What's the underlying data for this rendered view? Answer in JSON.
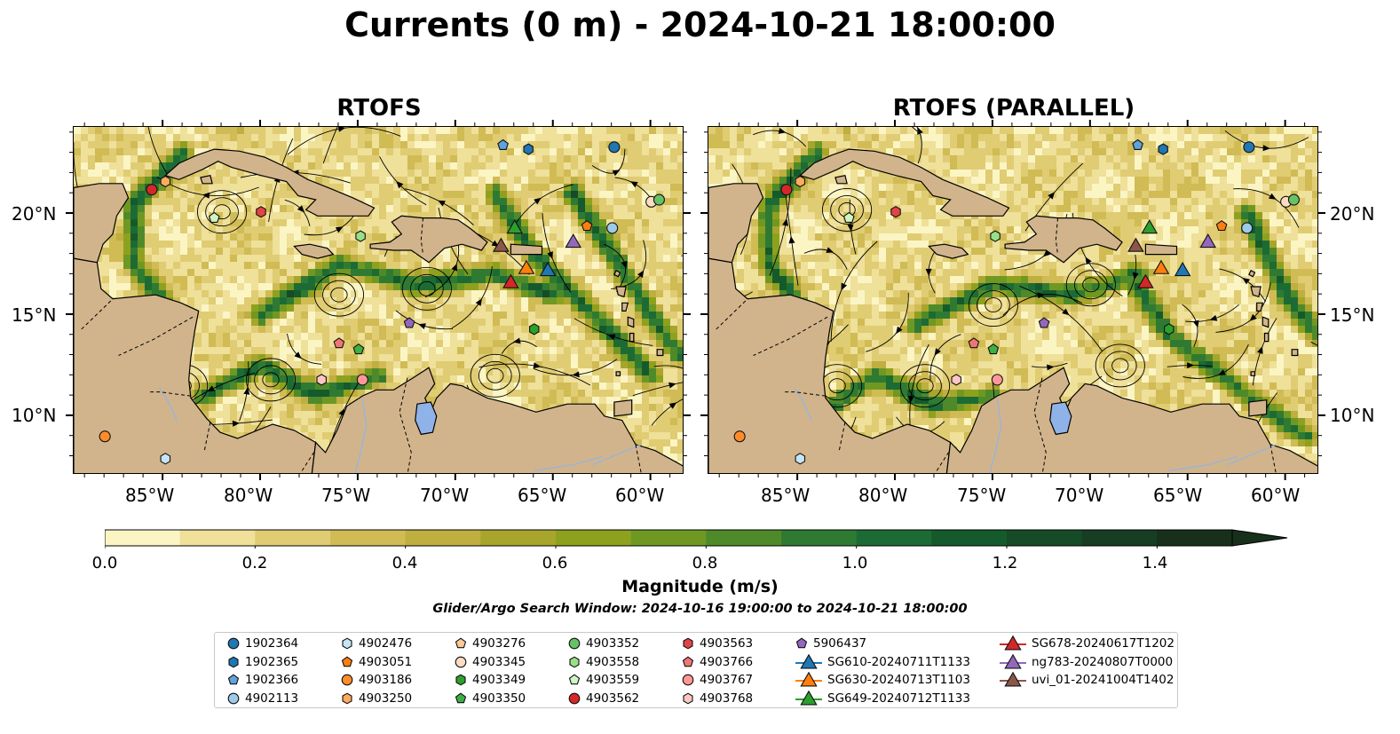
{
  "title": "Currents (0 m) - 2024-10-21 18:00:00",
  "panels": {
    "left_title": "RTOFS",
    "right_title": "RTOFS (PARALLEL)"
  },
  "axes": {
    "lon_labels": [
      "85°W",
      "80°W",
      "75°W",
      "70°W",
      "65°W",
      "60°W"
    ],
    "lat_labels": [
      "20°N",
      "15°N",
      "10°N"
    ]
  },
  "colorbar": {
    "label": "Magnitude (m/s)",
    "ticks": [
      "0.0",
      "0.2",
      "0.4",
      "0.6",
      "0.8",
      "1.0",
      "1.2",
      "1.4"
    ],
    "range": [
      0.0,
      1.5
    ],
    "extend": "max",
    "colormap": [
      "#fbf5c4",
      "#efe09a",
      "#e0cc72",
      "#d0bb55",
      "#bfae40",
      "#a8a52c",
      "#8ea11e",
      "#6f9823",
      "#4f8a2a",
      "#2f7a33",
      "#1d6b34",
      "#155a2c",
      "#164b27",
      "#173d22",
      "#182f1c"
    ]
  },
  "search_window": "Glider/Argo Search Window: 2024-10-16 19:00:00 to 2024-10-21 18:00:00",
  "colors": {
    "land": "#d2b48c",
    "lake": "#8fb3e8",
    "river": "#a0b4d0"
  },
  "legend": {
    "items": [
      {
        "label": "1902364",
        "marker": "circle",
        "color": "#1f77b4"
      },
      {
        "label": "1902365",
        "marker": "hexagon",
        "color": "#1f77b4"
      },
      {
        "label": "1902366",
        "marker": "pentagon",
        "color": "#5fa2dd"
      },
      {
        "label": "4902113",
        "marker": "circle",
        "color": "#9ecae9"
      },
      {
        "label": "4902476",
        "marker": "hexagon",
        "color": "#c6e5f5"
      },
      {
        "label": "4903051",
        "marker": "pentagon",
        "color": "#ff7f0e"
      },
      {
        "label": "4903186",
        "marker": "circle",
        "color": "#ff8c2a"
      },
      {
        "label": "4903250",
        "marker": "hexagon",
        "color": "#ffab5e"
      },
      {
        "label": "4903276",
        "marker": "pentagon",
        "color": "#ffc896"
      },
      {
        "label": "4903345",
        "marker": "circle",
        "color": "#ffdcc0"
      },
      {
        "label": "4903349",
        "marker": "hexagon",
        "color": "#2ca02c"
      },
      {
        "label": "4903350",
        "marker": "pentagon",
        "color": "#3cb043"
      },
      {
        "label": "4903352",
        "marker": "circle",
        "color": "#66c266"
      },
      {
        "label": "4903558",
        "marker": "hexagon",
        "color": "#98df8a"
      },
      {
        "label": "4903559",
        "marker": "pentagon",
        "color": "#cff5c5"
      },
      {
        "label": "4903562",
        "marker": "circle",
        "color": "#d62728"
      },
      {
        "label": "4903563",
        "marker": "hexagon",
        "color": "#e04545"
      },
      {
        "label": "4903766",
        "marker": "pentagon",
        "color": "#f07676"
      },
      {
        "label": "4903767",
        "marker": "circle",
        "color": "#ff9896"
      },
      {
        "label": "4903768",
        "marker": "hexagon",
        "color": "#ffc7c4"
      },
      {
        "label": "5906437",
        "marker": "pentagon",
        "color": "#9467bd"
      },
      {
        "label": "SG610-20240711T1133",
        "marker": "triangle",
        "color": "#1f77b4"
      },
      {
        "label": "SG630-20240713T1103",
        "marker": "triangle",
        "color": "#ff7f0e"
      },
      {
        "label": "SG649-20240712T1133",
        "marker": "triangle",
        "color": "#2ca02c"
      },
      {
        "label": "SG678-20240617T1202",
        "marker": "triangle",
        "color": "#d62728"
      },
      {
        "label": "ng783-20240807T0000",
        "marker": "triangle",
        "color": "#9467bd"
      },
      {
        "label": "uvi_01-20241004T1402",
        "marker": "triangle",
        "color": "#8c564b"
      }
    ]
  },
  "observations_left": [
    {
      "marker": "circle",
      "color": "#d62728",
      "lon": -85.6,
      "lat": 21.2
    },
    {
      "marker": "hexagon",
      "color": "#ffab5e",
      "lon": -84.9,
      "lat": 21.6
    },
    {
      "marker": "pentagon",
      "color": "#cff5c5",
      "lon": -82.4,
      "lat": 19.8
    },
    {
      "marker": "hexagon",
      "color": "#e04545",
      "lon": -80.0,
      "lat": 20.1
    },
    {
      "marker": "hexagon",
      "color": "#98df8a",
      "lon": -74.9,
      "lat": 18.9
    },
    {
      "marker": "pentagon",
      "color": "#5fa2dd",
      "lon": -67.6,
      "lat": 23.4
    },
    {
      "marker": "hexagon",
      "color": "#1f77b4",
      "lon": -66.3,
      "lat": 23.2
    },
    {
      "marker": "circle",
      "color": "#1f77b4",
      "lon": -61.9,
      "lat": 23.3
    },
    {
      "marker": "pentagon",
      "color": "#ff7f0e",
      "lon": -63.3,
      "lat": 19.4
    },
    {
      "marker": "circle",
      "color": "#9ecae9",
      "lon": -62.0,
      "lat": 19.3
    },
    {
      "marker": "circle",
      "color": "#ffdcc0",
      "lon": -60.0,
      "lat": 20.6
    },
    {
      "marker": "circle",
      "color": "#66c266",
      "lon": -59.6,
      "lat": 20.7
    },
    {
      "marker": "pentagon",
      "color": "#9467bd",
      "lon": -72.4,
      "lat": 14.6
    },
    {
      "marker": "hexagon",
      "color": "#2ca02c",
      "lon": -66.0,
      "lat": 14.3
    },
    {
      "marker": "pentagon",
      "color": "#f07676",
      "lon": -76.0,
      "lat": 13.6
    },
    {
      "marker": "pentagon",
      "color": "#3cb043",
      "lon": -75.0,
      "lat": 13.3
    },
    {
      "marker": "hexagon",
      "color": "#ffc7c4",
      "lon": -76.9,
      "lat": 11.8
    },
    {
      "marker": "circle",
      "color": "#ff9896",
      "lon": -74.8,
      "lat": 11.8
    },
    {
      "marker": "circle",
      "color": "#ff8c2a",
      "lon": -88.0,
      "lat": 9.0
    },
    {
      "marker": "hexagon",
      "color": "#c6e5f5",
      "lon": -84.9,
      "lat": 7.9
    },
    {
      "marker": "triangle",
      "color": "#2ca02c",
      "lon": -67.0,
      "lat": 19.3
    },
    {
      "marker": "triangle",
      "color": "#8c564b",
      "lon": -67.7,
      "lat": 18.4
    },
    {
      "marker": "triangle",
      "color": "#9467bd",
      "lon": -64.0,
      "lat": 18.6
    },
    {
      "marker": "triangle",
      "color": "#ff7f0e",
      "lon": -66.4,
      "lat": 17.3
    },
    {
      "marker": "triangle",
      "color": "#1f77b4",
      "lon": -65.3,
      "lat": 17.2
    },
    {
      "marker": "triangle",
      "color": "#d62728",
      "lon": -67.2,
      "lat": 16.6
    }
  ],
  "observations_right": [
    {
      "marker": "circle",
      "color": "#d62728",
      "lon": -85.6,
      "lat": 21.2
    },
    {
      "marker": "hexagon",
      "color": "#ffab5e",
      "lon": -84.9,
      "lat": 21.6
    },
    {
      "marker": "pentagon",
      "color": "#cff5c5",
      "lon": -82.4,
      "lat": 19.8
    },
    {
      "marker": "hexagon",
      "color": "#e04545",
      "lon": -80.0,
      "lat": 20.1
    },
    {
      "marker": "hexagon",
      "color": "#98df8a",
      "lon": -74.9,
      "lat": 18.9
    },
    {
      "marker": "pentagon",
      "color": "#5fa2dd",
      "lon": -67.6,
      "lat": 23.4
    },
    {
      "marker": "hexagon",
      "color": "#1f77b4",
      "lon": -66.3,
      "lat": 23.2
    },
    {
      "marker": "circle",
      "color": "#1f77b4",
      "lon": -61.9,
      "lat": 23.3
    },
    {
      "marker": "pentagon",
      "color": "#ff7f0e",
      "lon": -63.3,
      "lat": 19.4
    },
    {
      "marker": "circle",
      "color": "#9ecae9",
      "lon": -62.0,
      "lat": 19.3
    },
    {
      "marker": "circle",
      "color": "#ffdcc0",
      "lon": -60.0,
      "lat": 20.6
    },
    {
      "marker": "circle",
      "color": "#66c266",
      "lon": -59.6,
      "lat": 20.7
    },
    {
      "marker": "pentagon",
      "color": "#9467bd",
      "lon": -72.4,
      "lat": 14.6
    },
    {
      "marker": "hexagon",
      "color": "#2ca02c",
      "lon": -66.0,
      "lat": 14.3
    },
    {
      "marker": "pentagon",
      "color": "#f07676",
      "lon": -76.0,
      "lat": 13.6
    },
    {
      "marker": "pentagon",
      "color": "#3cb043",
      "lon": -75.0,
      "lat": 13.3
    },
    {
      "marker": "hexagon",
      "color": "#ffc7c4",
      "lon": -76.9,
      "lat": 11.8
    },
    {
      "marker": "circle",
      "color": "#ff9896",
      "lon": -74.8,
      "lat": 11.8
    },
    {
      "marker": "circle",
      "color": "#ff8c2a",
      "lon": -88.0,
      "lat": 9.0
    },
    {
      "marker": "hexagon",
      "color": "#c6e5f5",
      "lon": -84.9,
      "lat": 7.9
    },
    {
      "marker": "triangle",
      "color": "#2ca02c",
      "lon": -67.0,
      "lat": 19.3
    },
    {
      "marker": "triangle",
      "color": "#8c564b",
      "lon": -67.7,
      "lat": 18.4
    },
    {
      "marker": "triangle",
      "color": "#9467bd",
      "lon": -64.0,
      "lat": 18.6
    },
    {
      "marker": "triangle",
      "color": "#ff7f0e",
      "lon": -66.4,
      "lat": 17.3
    },
    {
      "marker": "triangle",
      "color": "#1f77b4",
      "lon": -65.3,
      "lat": 17.2
    },
    {
      "marker": "triangle",
      "color": "#d62728",
      "lon": -67.2,
      "lat": 16.6
    }
  ]
}
